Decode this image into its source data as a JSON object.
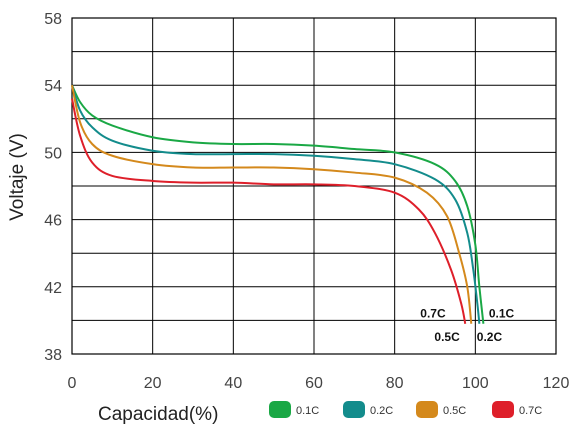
{
  "chart_data": {
    "type": "line",
    "title": "",
    "xlabel": "Capacidad(%)",
    "ylabel": "Voltaje (V)",
    "xlim": [
      0,
      120
    ],
    "ylim": [
      38,
      58
    ],
    "x_ticks": [
      0,
      20,
      40,
      60,
      80,
      100,
      120
    ],
    "y_ticks": [
      38,
      42,
      46,
      50,
      54,
      58
    ],
    "grid": true,
    "legend_position": "bottom",
    "series": [
      {
        "name": "0.1C",
        "color": "#1aa845",
        "points": [
          [
            0,
            54.0
          ],
          [
            2,
            53.0
          ],
          [
            5,
            52.2
          ],
          [
            10,
            51.6
          ],
          [
            20,
            50.9
          ],
          [
            30,
            50.6
          ],
          [
            40,
            50.5
          ],
          [
            50,
            50.5
          ],
          [
            60,
            50.4
          ],
          [
            70,
            50.2
          ],
          [
            80,
            50.0
          ],
          [
            90,
            49.3
          ],
          [
            95,
            48.3
          ],
          [
            98,
            46.8
          ],
          [
            100,
            44.5
          ],
          [
            101,
            42.0
          ],
          [
            102,
            39.8
          ]
        ]
      },
      {
        "name": "0.2C",
        "color": "#138c8c",
        "points": [
          [
            0,
            54.0
          ],
          [
            2,
            52.5
          ],
          [
            5,
            51.5
          ],
          [
            10,
            50.7
          ],
          [
            20,
            50.1
          ],
          [
            30,
            49.9
          ],
          [
            40,
            49.9
          ],
          [
            50,
            49.9
          ],
          [
            60,
            49.8
          ],
          [
            70,
            49.6
          ],
          [
            80,
            49.3
          ],
          [
            90,
            48.4
          ],
          [
            95,
            47.2
          ],
          [
            98,
            45.2
          ],
          [
            99.5,
            43.0
          ],
          [
            100.5,
            41.0
          ],
          [
            101,
            39.8
          ]
        ]
      },
      {
        "name": "0.5C",
        "color": "#d4891c",
        "points": [
          [
            0,
            54.0
          ],
          [
            2,
            51.8
          ],
          [
            5,
            50.5
          ],
          [
            10,
            49.8
          ],
          [
            20,
            49.3
          ],
          [
            30,
            49.1
          ],
          [
            40,
            49.1
          ],
          [
            50,
            49.1
          ],
          [
            60,
            49.0
          ],
          [
            70,
            48.8
          ],
          [
            80,
            48.5
          ],
          [
            88,
            47.6
          ],
          [
            93,
            46.2
          ],
          [
            96,
            44.0
          ],
          [
            98,
            42.0
          ],
          [
            99,
            39.8
          ]
        ]
      },
      {
        "name": "0.7C",
        "color": "#de1f2a",
        "points": [
          [
            0,
            53.2
          ],
          [
            2,
            51.0
          ],
          [
            5,
            49.4
          ],
          [
            10,
            48.6
          ],
          [
            20,
            48.3
          ],
          [
            30,
            48.2
          ],
          [
            40,
            48.2
          ],
          [
            50,
            48.1
          ],
          [
            60,
            48.1
          ],
          [
            70,
            48.0
          ],
          [
            80,
            47.6
          ],
          [
            86,
            46.6
          ],
          [
            90,
            45.2
          ],
          [
            94,
            43.0
          ],
          [
            96.5,
            41.0
          ],
          [
            97.5,
            39.8
          ]
        ]
      }
    ],
    "annotations": [
      {
        "text": "0.7C",
        "x": 89.5,
        "y": 40.4,
        "anchor": "middle"
      },
      {
        "text": "0.1C",
        "x": 106.5,
        "y": 40.4,
        "anchor": "middle"
      },
      {
        "text": "0.5C",
        "x": 93.0,
        "y": 39.0,
        "anchor": "middle"
      },
      {
        "text": "0.2C",
        "x": 103.5,
        "y": 39.0,
        "anchor": "middle"
      }
    ]
  }
}
